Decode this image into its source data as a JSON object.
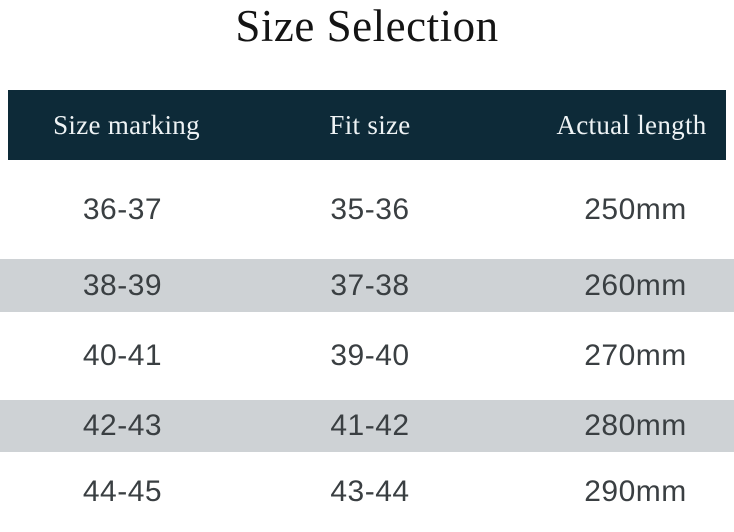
{
  "title": "Size Selection",
  "chart_data": {
    "type": "table",
    "title": "Size Selection",
    "columns": [
      "Size marking",
      "Fit size",
      "Actual length"
    ],
    "rows": [
      [
        "36-37",
        "35-36",
        "250mm"
      ],
      [
        "38-39",
        "37-38",
        "260mm"
      ],
      [
        "40-41",
        "39-40",
        "270mm"
      ],
      [
        "42-43",
        "41-42",
        "280mm"
      ],
      [
        "44-45",
        "43-44",
        "290mm"
      ]
    ],
    "layout_hints": {
      "alternating_row_highlight": "rows 2 and 4 have gray background bands",
      "last_row_clipped_at_bottom": true
    }
  },
  "colors": {
    "header_bg": "#0d2a38",
    "header_text": "#eef3f5",
    "alt_row_bg": "#ced2d5",
    "data_text": "#3a3f42",
    "title_text": "#141414",
    "page_bg": "#ffffff"
  }
}
